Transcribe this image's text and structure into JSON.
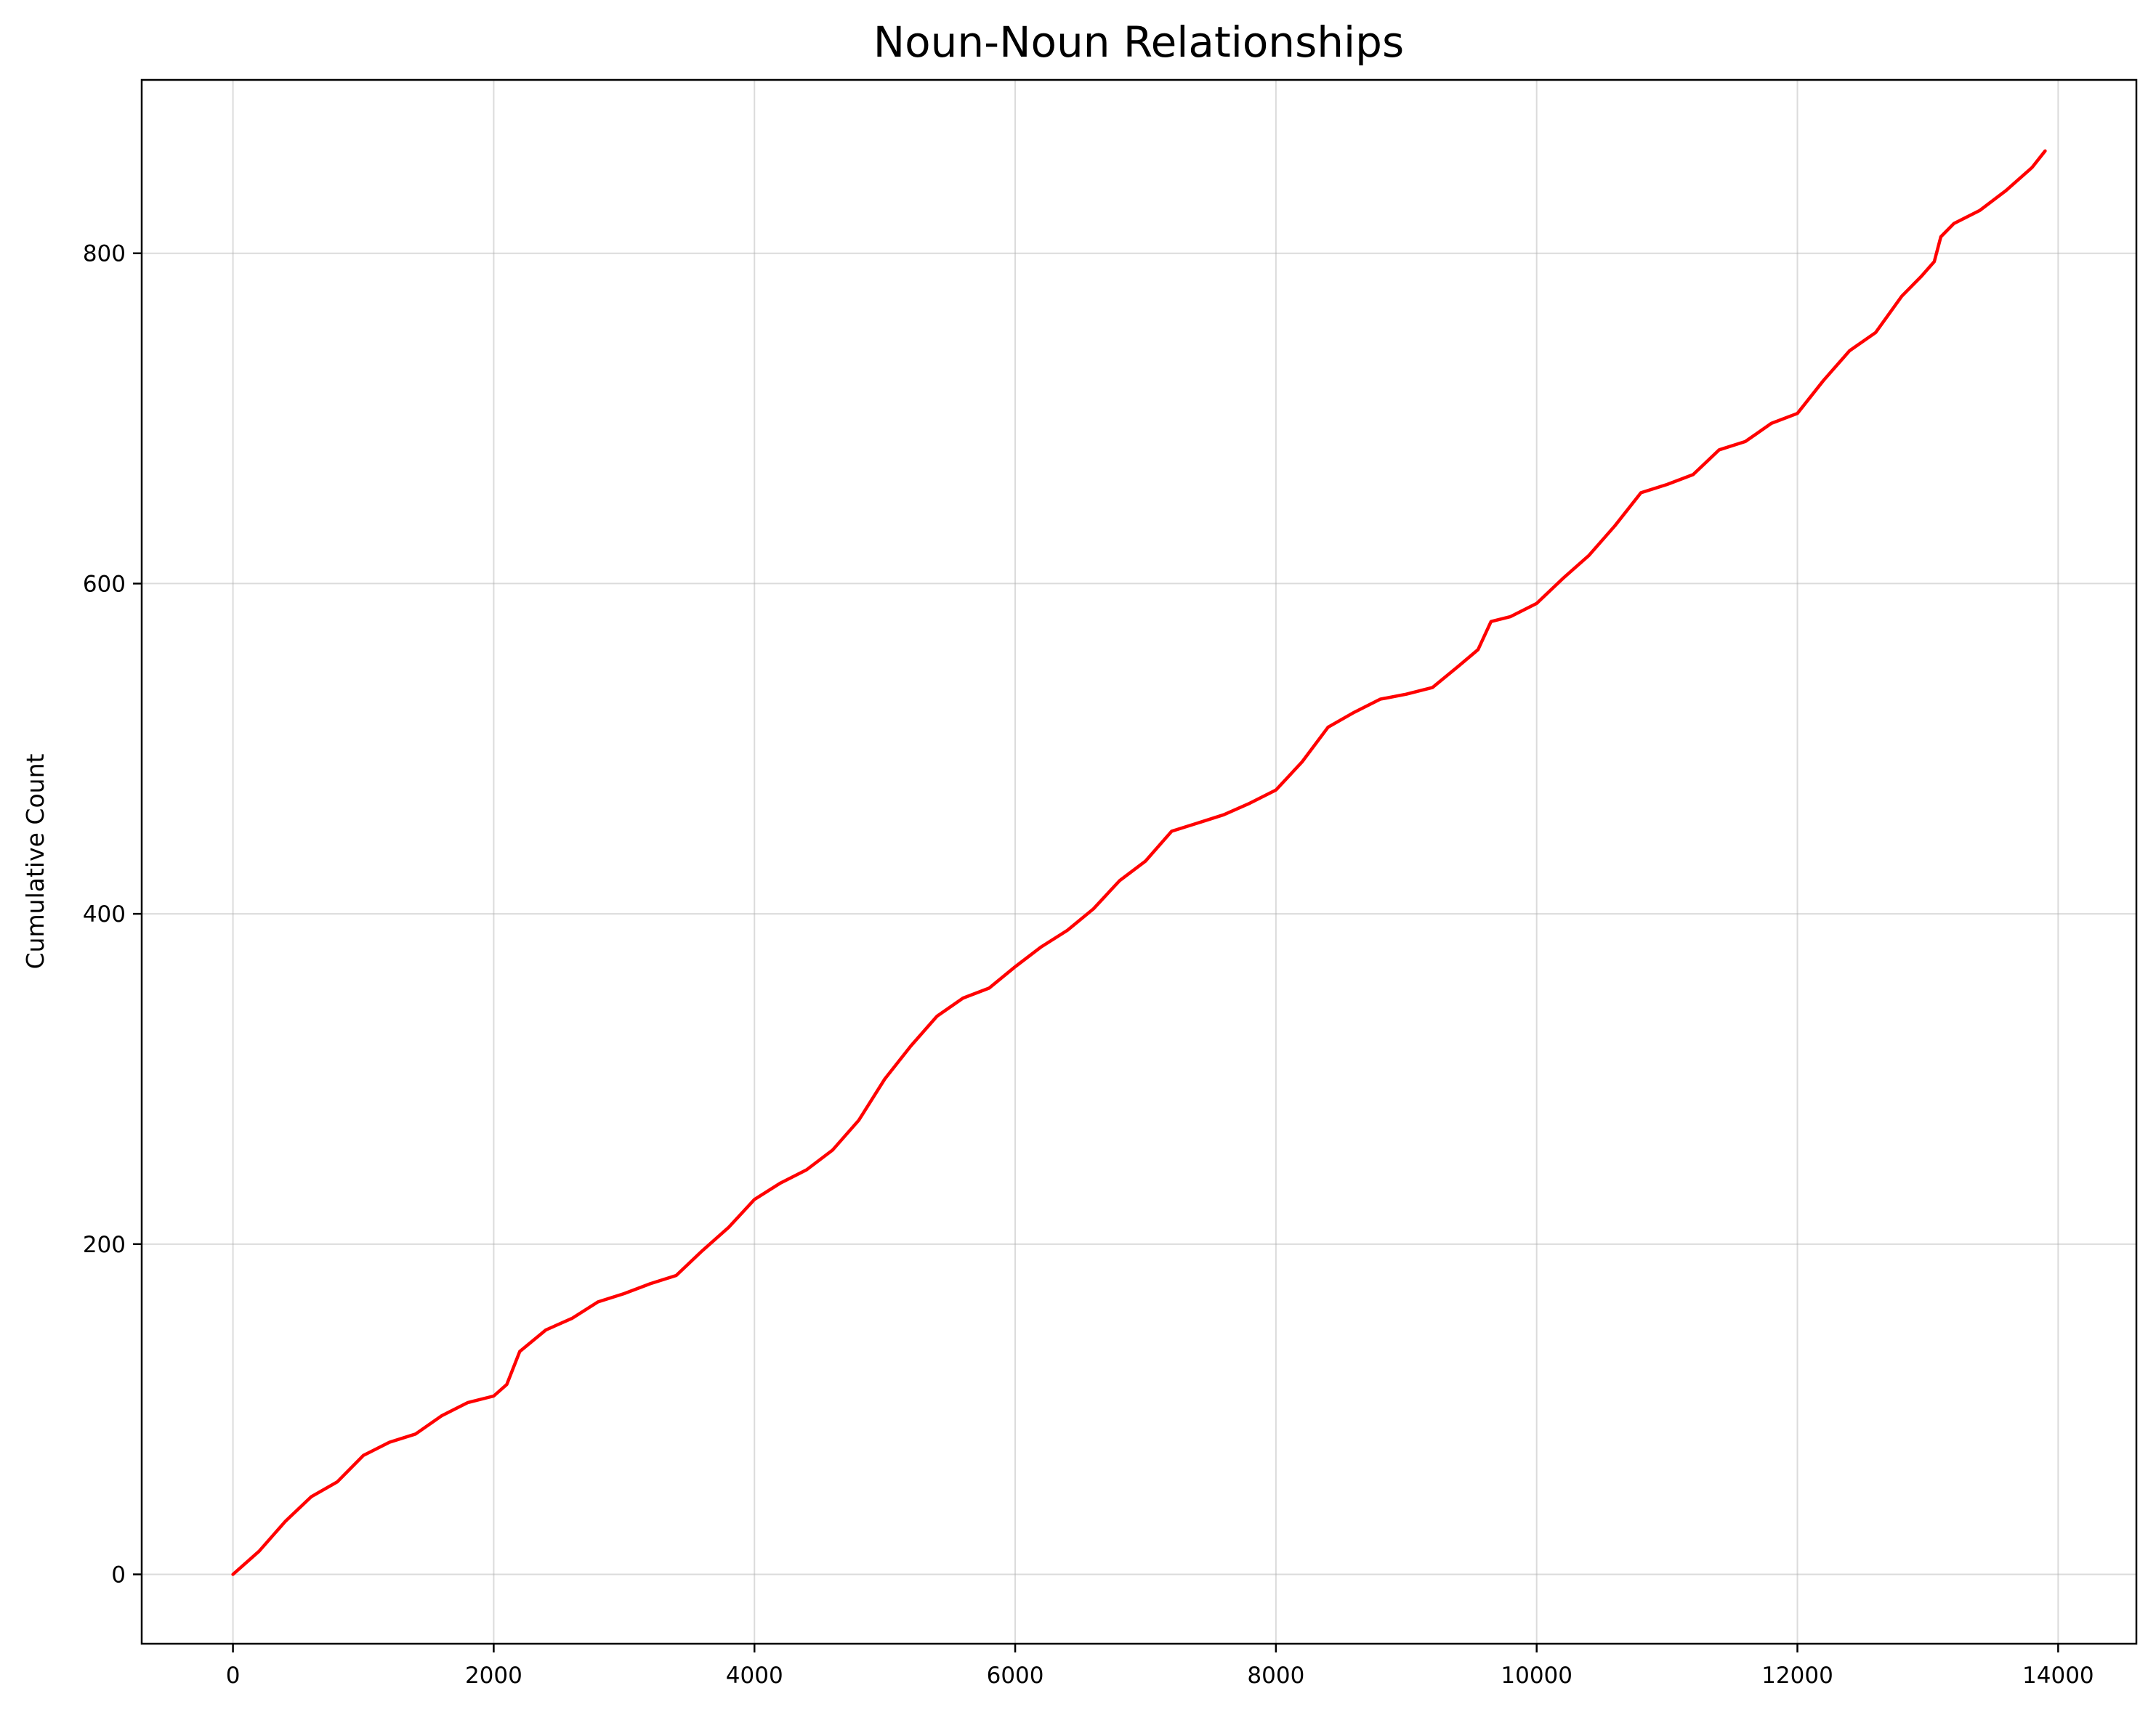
{
  "chart_data": {
    "type": "line",
    "title": "Noun-Noun Relationships",
    "xlabel": "",
    "ylabel": "Cumulative Count",
    "xlim": [
      -700,
      14600
    ],
    "ylim": [
      -42,
      905
    ],
    "xticks": [
      0,
      2000,
      4000,
      6000,
      8000,
      10000,
      12000,
      14000
    ],
    "yticks": [
      0,
      200,
      400,
      600,
      800
    ],
    "grid": true,
    "legend": "none",
    "series": [
      {
        "color": "#ff0000",
        "x": [
          0,
          200,
          400,
          600,
          800,
          1000,
          1200,
          1400,
          1600,
          1800,
          2000,
          2100,
          2200,
          2400,
          2600,
          2800,
          3000,
          3200,
          3400,
          3600,
          3800,
          4000,
          4200,
          4400,
          4600,
          4800,
          5000,
          5200,
          5400,
          5600,
          5800,
          6000,
          6200,
          6400,
          6600,
          6800,
          7000,
          7200,
          7400,
          7600,
          7800,
          8000,
          8200,
          8400,
          8600,
          8800,
          9000,
          9200,
          9400,
          9550,
          9650,
          9800,
          10000,
          10200,
          10400,
          10600,
          10800,
          11000,
          11200,
          11400,
          11600,
          11800,
          12000,
          12200,
          12400,
          12600,
          12800,
          12950,
          13050,
          13100,
          13200,
          13400,
          13600,
          13800,
          13900
        ],
        "y": [
          0,
          14,
          32,
          47,
          56,
          72,
          80,
          85,
          96,
          104,
          108,
          115,
          135,
          148,
          155,
          165,
          170,
          176,
          181,
          196,
          210,
          227,
          237,
          245,
          257,
          275,
          300,
          320,
          338,
          349,
          355,
          368,
          380,
          390,
          403,
          420,
          432,
          450,
          455,
          460,
          467,
          475,
          492,
          513,
          522,
          530,
          533,
          537,
          550,
          560,
          577,
          580,
          588,
          603,
          617,
          635,
          655,
          660,
          666,
          681,
          686,
          697,
          703,
          723,
          741,
          752,
          774,
          786,
          795,
          810,
          818,
          826,
          838,
          852,
          862
        ]
      }
    ]
  }
}
